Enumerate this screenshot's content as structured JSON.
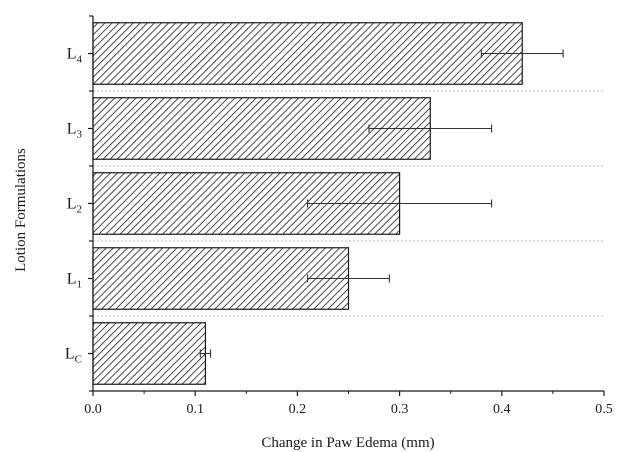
{
  "chart_data": {
    "type": "bar",
    "orientation": "horizontal",
    "xlabel": "Change in Paw Edema (mm)",
    "ylabel": "Lotion Formulations",
    "xlim": [
      0,
      0.5
    ],
    "x_ticks": [
      "0.0",
      "0.1",
      "0.2",
      "0.3",
      "0.4",
      "0.5"
    ],
    "bar_fill": "diagonal hatch",
    "gridlines": "dotted horizontal separators",
    "categories": [
      {
        "base": "L",
        "sub": "4"
      },
      {
        "base": "L",
        "sub": "3"
      },
      {
        "base": "L",
        "sub": "2"
      },
      {
        "base": "L",
        "sub": "1"
      },
      {
        "base": "L",
        "sub": "C"
      }
    ],
    "values": [
      0.42,
      0.33,
      0.3,
      0.25,
      0.11
    ],
    "error_low": [
      0.38,
      0.27,
      0.21,
      0.21,
      0.105
    ],
    "error_high": [
      0.46,
      0.39,
      0.39,
      0.29,
      0.115
    ],
    "colors": {
      "bar_stroke": "#1a1a1a",
      "hatch": "#1a1a1a",
      "axis": "#1a1a1a",
      "error_bar": "#333333",
      "grid": "#bbbbbb"
    }
  }
}
